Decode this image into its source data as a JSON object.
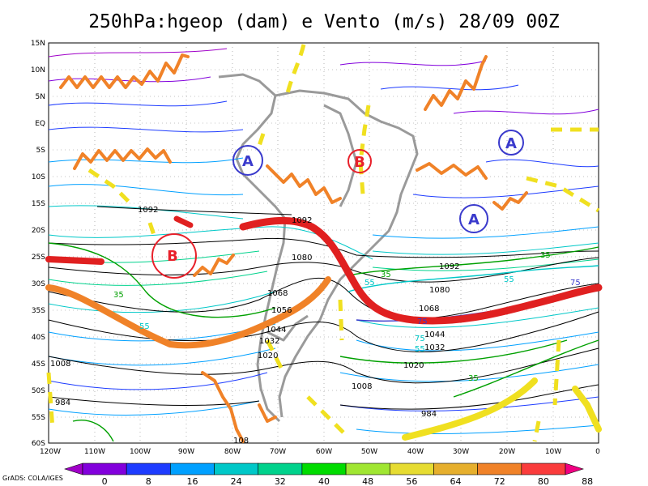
{
  "title": "250hPa:hgeop (dam) e Vento (m/s) 28/09 00Z",
  "credit": "GrADS: COLA/IGES",
  "lat_labels": [
    "15N",
    "10N",
    "5N",
    "EQ",
    "5S",
    "10S",
    "15S",
    "20S",
    "25S",
    "30S",
    "35S",
    "40S",
    "45S",
    "50S",
    "55S",
    "60S"
  ],
  "lon_labels": [
    "120W",
    "110W",
    "100W",
    "90W",
    "80W",
    "70W",
    "60W",
    "50W",
    "40W",
    "30W",
    "20W",
    "10W",
    "0"
  ],
  "colorbar": {
    "labels": [
      "0",
      "8",
      "16",
      "24",
      "32",
      "40",
      "48",
      "56",
      "64",
      "72",
      "80",
      "88"
    ],
    "colors": [
      "#a000c8",
      "#8200dc",
      "#1e3cff",
      "#00a0ff",
      "#00c8c8",
      "#00d28c",
      "#00dc00",
      "#a0e632",
      "#e6dc32",
      "#e6af2d",
      "#f08228",
      "#fa3c3c",
      "#f00082"
    ]
  },
  "centers": [
    {
      "letter": "A",
      "color": "#3a3acc"
    },
    {
      "letter": "A",
      "color": "#3a3acc"
    },
    {
      "letter": "A",
      "color": "#3a3acc"
    },
    {
      "letter": "B",
      "color": "#e8202a"
    },
    {
      "letter": "B",
      "color": "#e8202a"
    }
  ],
  "height_labels": [
    "1092",
    "1092",
    "1080",
    "1068",
    "1056",
    "1044",
    "1032",
    "1020",
    "1008",
    "984",
    "108",
    "1092",
    "1080",
    "1068",
    "1044",
    "1032",
    "1020",
    "1008",
    "984",
    "1008",
    "1020",
    "1044",
    "1032"
  ],
  "isotach_labels": [
    "35",
    "55",
    "35",
    "55",
    "75",
    "75",
    "55",
    "35",
    "35",
    "55",
    "75"
  ]
}
